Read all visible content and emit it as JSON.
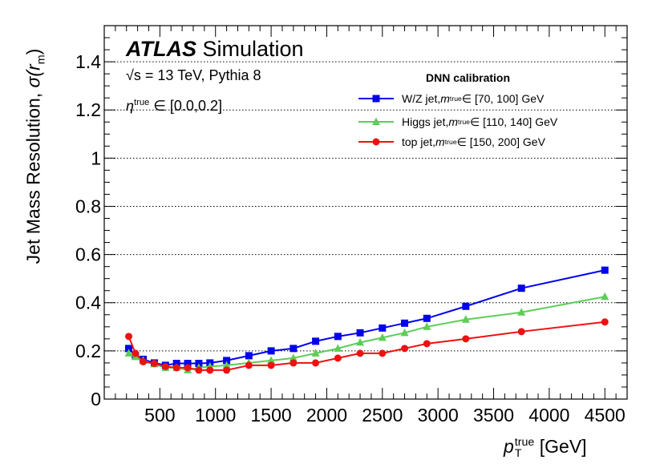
{
  "chart_data": {
    "type": "line",
    "title": "",
    "xlabel": {
      "symbol": "p",
      "sup": "true",
      "sub": "T",
      "unit": " [GeV]"
    },
    "ylabel": {
      "text": "Jet Mass Resolution, ",
      "symbol": "σ(r",
      "sub": "m",
      "close": ")"
    },
    "xlim": [
      0,
      4700
    ],
    "ylim": [
      0,
      1.55
    ],
    "xticks": [
      500,
      1000,
      1500,
      2000,
      2500,
      3000,
      3500,
      4000,
      4500
    ],
    "yticks": [
      0,
      0.2,
      0.4,
      0.6,
      0.8,
      1,
      1.2,
      1.4
    ],
    "ytick_labels": [
      "0",
      "0.2",
      "0.4",
      "0.6",
      "0.8",
      "1",
      "1.2",
      "1.4"
    ],
    "grid": {
      "y": true,
      "x": false,
      "style": "dotted"
    },
    "legend_title": "DNN calibration",
    "legend_position": "top-right",
    "series": [
      {
        "name": "W/Z jet, ",
        "legend_symbol": "m",
        "legend_sup": "true",
        "legend_range": " ∈ [70, 100] GeV",
        "color": "#0000ee",
        "marker": "square",
        "x": [
          220,
          280,
          350,
          450,
          550,
          650,
          750,
          850,
          950,
          1100,
          1300,
          1500,
          1700,
          1900,
          2100,
          2300,
          2500,
          2700,
          2900,
          3250,
          3750,
          4500
        ],
        "values": [
          0.21,
          0.18,
          0.165,
          0.15,
          0.14,
          0.148,
          0.148,
          0.148,
          0.15,
          0.16,
          0.18,
          0.2,
          0.21,
          0.24,
          0.26,
          0.275,
          0.295,
          0.315,
          0.335,
          0.385,
          0.46,
          0.535
        ]
      },
      {
        "name": "Higgs jet, ",
        "legend_symbol": "m",
        "legend_sup": "true",
        "legend_range": " ∈ [110, 140] GeV",
        "color": "#5ccd57",
        "marker": "triangle",
        "x": [
          220,
          280,
          350,
          450,
          550,
          650,
          750,
          850,
          950,
          1100,
          1300,
          1500,
          1700,
          1900,
          2100,
          2300,
          2500,
          2700,
          2900,
          3250,
          3750,
          4500
        ],
        "values": [
          0.19,
          0.175,
          0.16,
          0.145,
          0.13,
          0.13,
          0.12,
          0.13,
          0.135,
          0.14,
          0.15,
          0.16,
          0.17,
          0.19,
          0.21,
          0.235,
          0.255,
          0.275,
          0.3,
          0.33,
          0.36,
          0.425
        ]
      },
      {
        "name": "top jet, ",
        "legend_symbol": "m",
        "legend_sup": "true",
        "legend_range": " ∈ [150, 200] GeV",
        "color": "#ee1111",
        "marker": "circle",
        "x": [
          220,
          280,
          350,
          450,
          550,
          650,
          750,
          850,
          950,
          1100,
          1300,
          1500,
          1700,
          1900,
          2100,
          2300,
          2500,
          2700,
          2900,
          3250,
          3750,
          4500
        ],
        "values": [
          0.26,
          0.19,
          0.155,
          0.148,
          0.135,
          0.13,
          0.13,
          0.12,
          0.12,
          0.12,
          0.14,
          0.14,
          0.15,
          0.15,
          0.17,
          0.19,
          0.19,
          0.21,
          0.23,
          0.25,
          0.28,
          0.32
        ]
      }
    ],
    "annotations": {
      "atlas": "ATLAS",
      "simulation": " Simulation",
      "energy_sqrt": "√s",
      "energy_rest": " = 13 TeV, Pythia 8",
      "eta_symbol": "η",
      "eta_sup": "true",
      "eta_range": " ∈ [0.0,0.2]"
    }
  }
}
